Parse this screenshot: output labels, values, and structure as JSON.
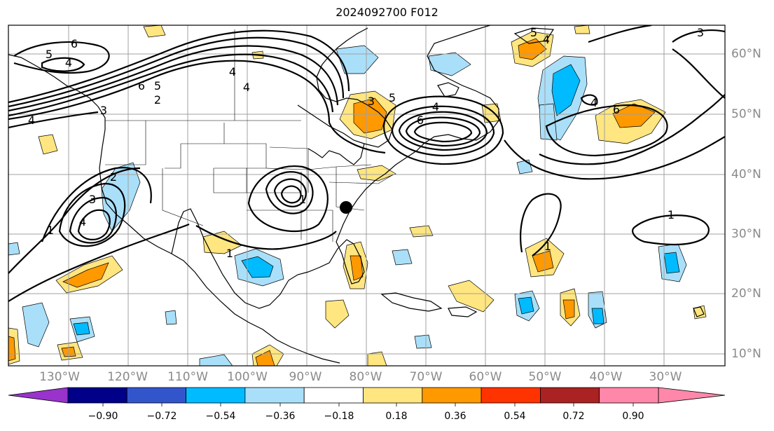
{
  "title": "2024092700 F012",
  "lon_labels": [
    "130°W",
    "120°W",
    "110°W",
    "100°W",
    "90°W",
    "80°W",
    "70°W",
    "60°W",
    "50°W",
    "40°W",
    "30°W"
  ],
  "lat_labels": [
    "60°N",
    "50°N",
    "40°N",
    "30°N",
    "20°N",
    "10°N"
  ],
  "contour_labels": [
    "6",
    "5",
    "4",
    "4",
    "6",
    "5",
    "2",
    "3",
    "4",
    "4",
    "3",
    "5",
    "6",
    "4",
    "2",
    "3",
    "4",
    "1",
    "1",
    "1",
    "1",
    "5",
    "4",
    "6",
    "4",
    "3",
    "1"
  ],
  "colorbar": {
    "ticks": [
      "−0.90",
      "−0.72",
      "−0.54",
      "−0.36",
      "−0.18",
      "0.18",
      "0.36",
      "0.54",
      "0.72",
      "0.90"
    ],
    "colors": [
      "#9933cc",
      "#000088",
      "#3355cc",
      "#00bbff",
      "#aadff9",
      "#ffffff",
      "#ffe680",
      "#ff9900",
      "#ff3300",
      "#aa2222",
      "#ff88aa"
    ]
  },
  "marker": "storm-center"
}
